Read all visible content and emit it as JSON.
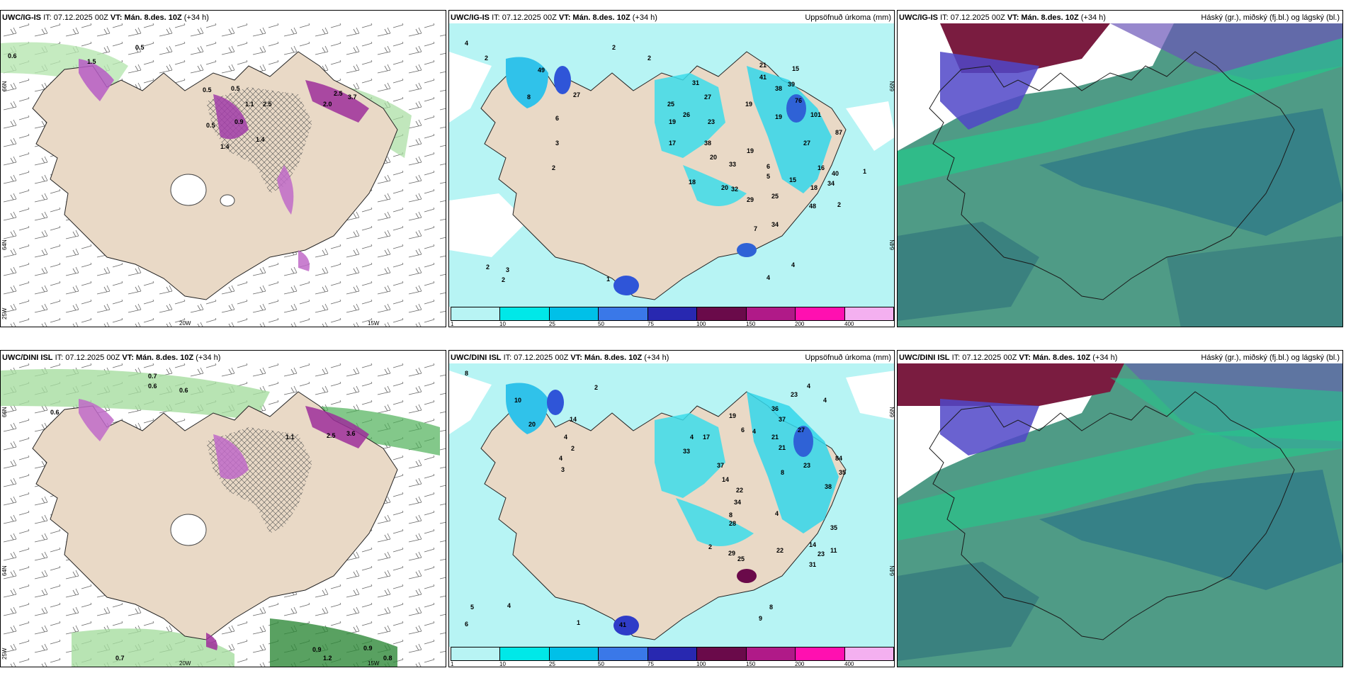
{
  "panels": [
    {
      "model": "UWC/IG-IS",
      "it": "IT: 07.12.2025 00Z",
      "vt": "VT: Mán. 8.des. 10Z",
      "lead": "(+34 h)",
      "right": ""
    },
    {
      "model": "UWC/IG-IS",
      "it": "IT: 07.12.2025 00Z",
      "vt": "VT: Mán. 8.des. 10Z",
      "lead": "(+34 h)",
      "right": "Uppsöfnuð úrkoma (mm)"
    },
    {
      "model": "UWC/IG-IS",
      "it": "IT: 07.12.2025 00Z",
      "vt": "VT: Mán. 8.des. 10Z",
      "lead": "(+34 h)",
      "right": "Háský (gr.), miðský (fj.bl.) og lágský (bl.)"
    },
    {
      "model": "UWC/DINI ISL",
      "it": "IT: 07.12.2025 00Z",
      "vt": "VT: Mán. 8.des. 10Z",
      "lead": "(+34 h)",
      "right": ""
    },
    {
      "model": "UWC/DINI ISL",
      "it": "IT: 07.12.2025 00Z",
      "vt": "VT: Mán. 8.des. 10Z",
      "lead": "(+34 h)",
      "right": "Uppsöfnuð úrkoma (mm)"
    },
    {
      "model": "UWC/DINI ISL",
      "it": "IT: 07.12.2025 00Z",
      "vt": "VT: Mán. 8.des. 10Z",
      "lead": "(+34 h)",
      "right": "Háský (gr.), miðský (fj.bl.) og lágský (bl.)"
    }
  ],
  "axes": {
    "lon_20": "20W",
    "lon_15": "15W",
    "lat_66": "66N",
    "lat_64": "64N",
    "lat_25": "25W"
  },
  "colorbar": {
    "ticks": [
      "1",
      "10",
      "25",
      "50",
      "75",
      "100",
      "150",
      "200",
      "400"
    ],
    "colors": [
      "#b8f4f4",
      "#00e8e8",
      "#00c0e8",
      "#3a78e8",
      "#2828b0",
      "#6a0a4a",
      "#b01a88",
      "#ff10b0",
      "#f4b0f0"
    ]
  },
  "labels_ig_wind": [
    "0.6",
    "0.5",
    "1.5",
    "0.5",
    "0.5",
    "1.4",
    "2.0",
    "2.5",
    "3.7",
    "1.4",
    "0.9",
    "0.5",
    "1.1",
    "2.5"
  ],
  "labels_dini_wind": [
    "0.7",
    "0.6",
    "0.6",
    "0.6",
    "1.1",
    "2.5",
    "3.6",
    "0.7",
    "0.9",
    "0.8",
    "0.9",
    "1.2"
  ],
  "labels_ig_precip": [
    "4",
    "2",
    "2",
    "2",
    "49",
    "27",
    "8",
    "6",
    "3",
    "2",
    "25",
    "26",
    "19",
    "17",
    "23",
    "38",
    "20",
    "31",
    "27",
    "21",
    "41",
    "38",
    "39",
    "19",
    "76",
    "19",
    "15",
    "101",
    "87",
    "27",
    "33",
    "19",
    "6",
    "5",
    "16",
    "15",
    "18",
    "34",
    "20",
    "32",
    "25",
    "29",
    "48",
    "2",
    "1",
    "40",
    "18",
    "34",
    "7",
    "4",
    "4",
    "2",
    "3",
    "2",
    "1"
  ],
  "labels_dini_precip": [
    "8",
    "2",
    "10",
    "20",
    "4",
    "2",
    "4",
    "3",
    "14",
    "33",
    "17",
    "19",
    "6",
    "4",
    "36",
    "23",
    "37",
    "21",
    "8",
    "23",
    "21",
    "27",
    "84",
    "38",
    "35",
    "37",
    "14",
    "22",
    "34",
    "8",
    "4",
    "4",
    "2",
    "29",
    "25",
    "22",
    "14",
    "23",
    "31",
    "35",
    "11",
    "8",
    "9",
    "4",
    "4",
    "5",
    "6",
    "4",
    "1",
    "28",
    "41"
  ]
}
